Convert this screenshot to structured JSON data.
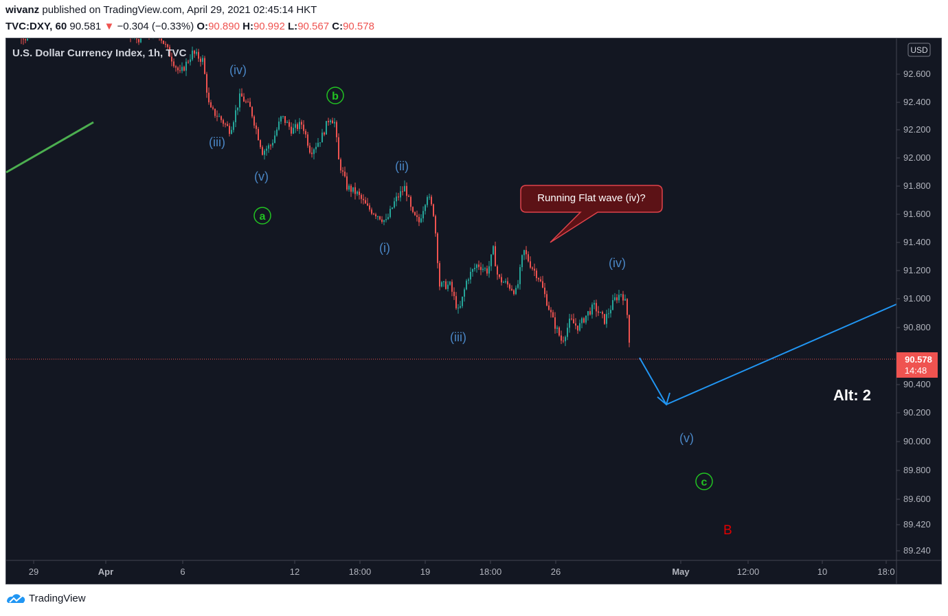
{
  "header": {
    "author": "wivanz",
    "published_text": "published on TradingView.com, April 29, 2021 02:45:14 HKT",
    "symbol": "TVC:DXY, 60",
    "last": "90.581",
    "change": "−0.304 (−0.33%)",
    "o_label": "O:",
    "o": "90.890",
    "h_label": "H:",
    "h": "90.992",
    "l_label": "L:",
    "l": "90.567",
    "c_label": "C:",
    "c": "90.578"
  },
  "chart_data": {
    "type": "candlestick",
    "title": "U.S. Dollar Currency Index, 1h, TVC",
    "currency": "USD",
    "y_ticks": [
      "92.600",
      "92.400",
      "92.200",
      "92.000",
      "91.800",
      "91.600",
      "91.400",
      "91.200",
      "91.000",
      "90.800",
      "90.400",
      "90.200",
      "90.000",
      "89.800",
      "89.600",
      "89.420",
      "89.240"
    ],
    "x_ticks": [
      "29",
      "Apr",
      "6",
      "12",
      "18:00",
      "19",
      "18:00",
      "26",
      "May",
      "12:00",
      "10",
      "18:0"
    ],
    "price_label": "90.578",
    "countdown": "14:48",
    "wave_labels": [
      {
        "text": "(iv)",
        "color": "#4a86c5"
      },
      {
        "text": "(iii)",
        "color": "#4a86c5"
      },
      {
        "text": "(v)",
        "color": "#4a86c5"
      },
      {
        "text": "(ii)",
        "color": "#4a86c5"
      },
      {
        "text": "(i)",
        "color": "#4a86c5"
      },
      {
        "text": "(iii)",
        "color": "#4a86c5"
      },
      {
        "text": "(iv)",
        "color": "#4a86c5"
      },
      {
        "text": "(v)",
        "color": "#4a86c5"
      }
    ],
    "circled_labels": [
      "a",
      "b",
      "c"
    ],
    "wave_B_label": "B",
    "alt_label": "Alt: 2",
    "callout": "Running Flat wave (iv)?",
    "projection": {
      "from": 90.6,
      "low": 90.27,
      "to": 91.0
    }
  },
  "colors": {
    "background": "#131722",
    "up": "#26a69a",
    "down": "#ef5350",
    "wave_blue": "#4a86c5",
    "wave_green": "#22c322",
    "projection": "#2196f3",
    "callout_bg": "#5c1216",
    "callout_border": "#e0434b"
  },
  "footer": {
    "brand": "TradingView",
    "logo_icon": "tradingview-logo-icon"
  }
}
